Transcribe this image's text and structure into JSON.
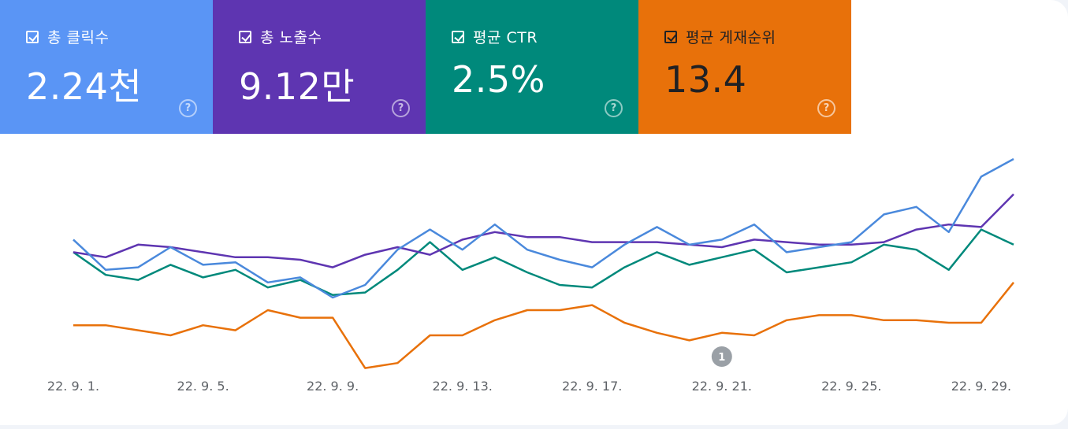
{
  "metrics": [
    {
      "label": "총 클릭수",
      "value": "2.24천",
      "color": "#5a95f5"
    },
    {
      "label": "총 노출수",
      "value": "9.12만",
      "color": "#5e35b1"
    },
    {
      "label": "평균 CTR",
      "value": "2.5%",
      "color": "#00897b"
    },
    {
      "label": "평균 게재순위",
      "value": "13.4",
      "color": "#e8710a"
    }
  ],
  "help_glyph": "?",
  "annotation": {
    "label": "1",
    "date_index": 20
  },
  "chart_data": {
    "type": "line",
    "x": [
      "22. 9. 1.",
      "22. 9. 2.",
      "22. 9. 3.",
      "22. 9. 4.",
      "22. 9. 5.",
      "22. 9. 6.",
      "22. 9. 7.",
      "22. 9. 8.",
      "22. 9. 9.",
      "22. 9. 10.",
      "22. 9. 11.",
      "22. 9. 12.",
      "22. 9. 13.",
      "22. 9. 14.",
      "22. 9. 15.",
      "22. 9. 16.",
      "22. 9. 17.",
      "22. 9. 18.",
      "22. 9. 19.",
      "22. 9. 20.",
      "22. 9. 21.",
      "22. 9. 22.",
      "22. 9. 23.",
      "22. 9. 24.",
      "22. 9. 25.",
      "22. 9. 26.",
      "22. 9. 27.",
      "22. 9. 28.",
      "22. 9. 29.",
      "22. 9. 30."
    ],
    "x_tick_labels": [
      "22. 9. 1.",
      "22. 9. 5.",
      "22. 9. 9.",
      "22. 9. 13.",
      "22. 9. 17.",
      "22. 9. 21.",
      "22. 9. 25.",
      "22. 9. 29."
    ],
    "y_axis_labels_visible": false,
    "grid": false,
    "series": [
      {
        "metric": "position",
        "color": "#e8710a",
        "values": [
          0.24,
          0.24,
          0.22,
          0.2,
          0.24,
          0.22,
          0.3,
          0.27,
          0.27,
          0.07,
          0.09,
          0.2,
          0.2,
          0.26,
          0.3,
          0.3,
          0.32,
          0.25,
          0.21,
          0.18,
          0.21,
          0.2,
          0.26,
          0.28,
          0.28,
          0.26,
          0.26,
          0.25,
          0.25,
          0.41
        ]
      },
      {
        "metric": "ctr",
        "color": "#00897b",
        "values": [
          0.53,
          0.44,
          0.42,
          0.48,
          0.43,
          0.46,
          0.39,
          0.42,
          0.36,
          0.37,
          0.46,
          0.57,
          0.46,
          0.51,
          0.45,
          0.4,
          0.39,
          0.47,
          0.53,
          0.48,
          0.51,
          0.54,
          0.45,
          0.47,
          0.49,
          0.56,
          0.54,
          0.46,
          0.62,
          0.56
        ]
      },
      {
        "metric": "impressions",
        "color": "#5e35b1",
        "values": [
          0.53,
          0.51,
          0.56,
          0.55,
          0.53,
          0.51,
          0.51,
          0.5,
          0.47,
          0.52,
          0.55,
          0.52,
          0.58,
          0.61,
          0.59,
          0.59,
          0.57,
          0.57,
          0.57,
          0.56,
          0.55,
          0.58,
          0.57,
          0.56,
          0.56,
          0.57,
          0.62,
          0.64,
          0.63,
          0.76
        ]
      },
      {
        "metric": "clicks",
        "color": "#4a89dc",
        "values": [
          0.58,
          0.46,
          0.47,
          0.55,
          0.48,
          0.49,
          0.41,
          0.43,
          0.35,
          0.4,
          0.54,
          0.62,
          0.54,
          0.64,
          0.54,
          0.5,
          0.47,
          0.56,
          0.63,
          0.56,
          0.58,
          0.64,
          0.53,
          0.55,
          0.57,
          0.68,
          0.71,
          0.61,
          0.83,
          0.9
        ]
      }
    ]
  }
}
